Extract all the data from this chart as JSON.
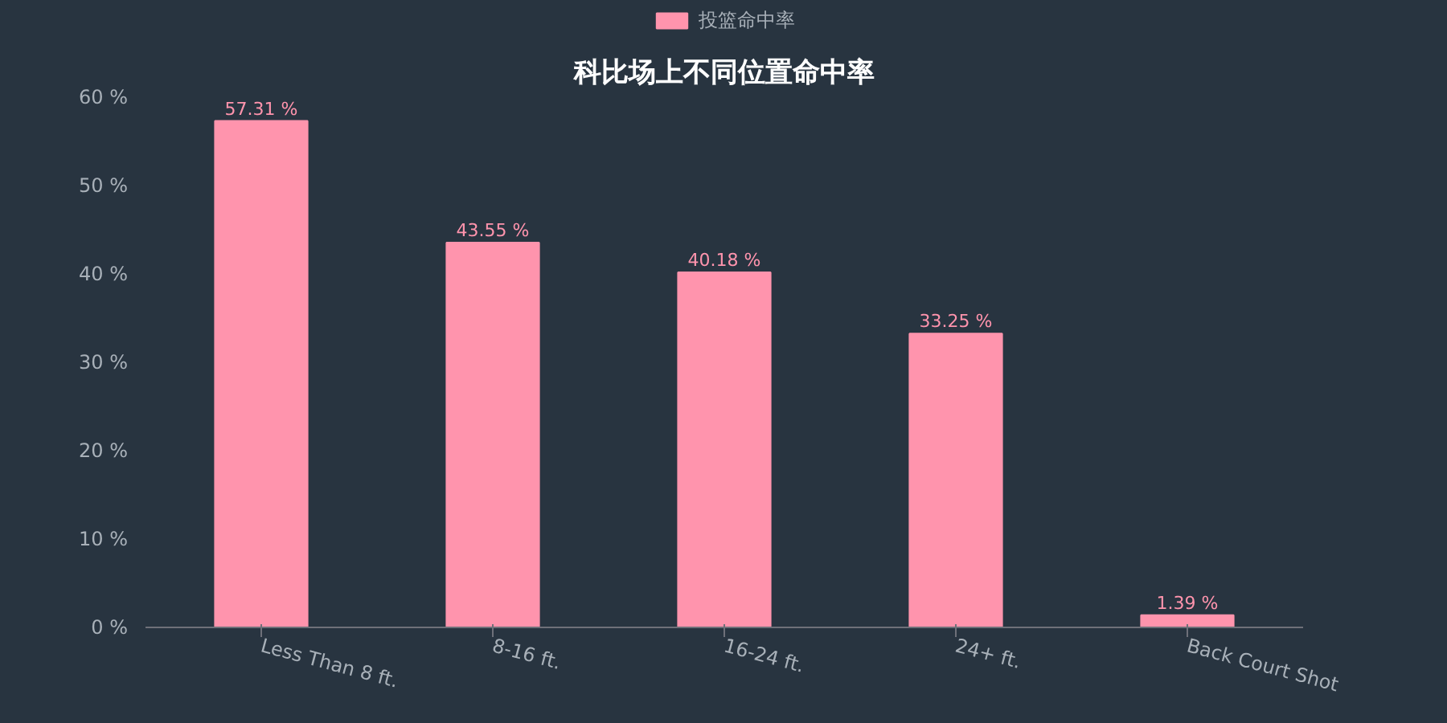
{
  "chart_data": {
    "type": "bar",
    "title": "科比场上不同位置命中率",
    "categories": [
      "Less Than 8 ft.",
      "8-16 ft.",
      "16-24 ft.",
      "24+ ft.",
      "Back Court Shot"
    ],
    "series": [
      {
        "name": "投篮命中率",
        "color": "#ff94ad",
        "values": [
          57.31,
          43.55,
          40.18,
          33.25,
          1.39
        ],
        "value_labels": [
          "57.31 %",
          "43.55 %",
          "40.18 %",
          "33.25 %",
          "1.39 %"
        ]
      }
    ],
    "ylim": [
      0,
      60
    ],
    "yticks": [
      {
        "value": 0,
        "label": "0 %"
      },
      {
        "value": 10,
        "label": "10 %"
      },
      {
        "value": 20,
        "label": "20 %"
      },
      {
        "value": 30,
        "label": "30 %"
      },
      {
        "value": 40,
        "label": "40 %"
      },
      {
        "value": 50,
        "label": "50 %"
      },
      {
        "value": 60,
        "label": "60 %"
      }
    ],
    "grid": false,
    "legend": "top"
  }
}
